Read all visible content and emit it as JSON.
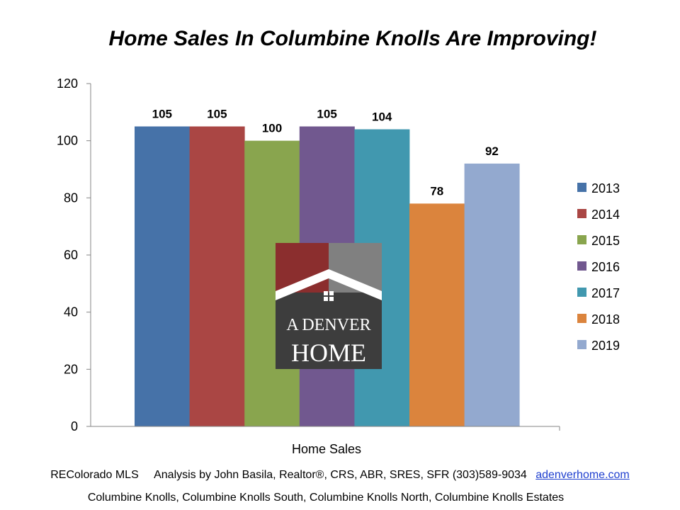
{
  "title": "Home Sales In Columbine Knolls Are Improving!",
  "footer": {
    "source": "REColorado MLS",
    "analysis": "Analysis by John Basila, Realtor®, CRS, ABR, SRES, SFR (303)589-9034",
    "link": "adenverhome.com",
    "areas": "Columbine Knolls, Columbine Knolls South, Columbine Knolls North, Columbine Knolls Estates"
  },
  "logo": {
    "line1": "A DENVER",
    "line2": "HOME",
    "colors": {
      "red": "#8b2e2e",
      "gray": "#808080",
      "dark": "#3d3d3d"
    }
  },
  "chart_data": {
    "type": "bar",
    "title": "Home Sales In Columbine Knolls Are Improving!",
    "xlabel": "Home Sales",
    "ylabel": "",
    "ylim": [
      0,
      120
    ],
    "yticks": [
      0,
      20,
      40,
      60,
      80,
      100,
      120
    ],
    "categories": [
      "Home Sales"
    ],
    "grid": false,
    "legend_position": "right",
    "series": [
      {
        "name": "2013",
        "values": [
          105
        ],
        "color": "#4672a8"
      },
      {
        "name": "2014",
        "values": [
          105
        ],
        "color": "#aa4644"
      },
      {
        "name": "2015",
        "values": [
          100
        ],
        "color": "#89a54e"
      },
      {
        "name": "2016",
        "values": [
          105
        ],
        "color": "#71588f"
      },
      {
        "name": "2017",
        "values": [
          104
        ],
        "color": "#4198af"
      },
      {
        "name": "2018",
        "values": [
          78
        ],
        "color": "#db843d"
      },
      {
        "name": "2019",
        "values": [
          92
        ],
        "color": "#93a9cf"
      }
    ]
  }
}
